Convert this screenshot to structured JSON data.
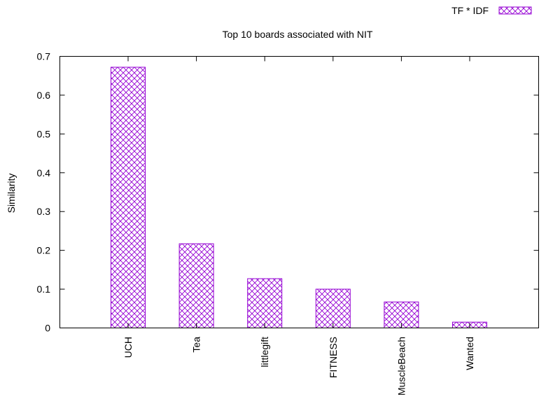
{
  "chart_data": {
    "type": "bar",
    "title": "Top 10 boards associated with NIT",
    "xlabel": "",
    "ylabel": "Similarity",
    "categories": [
      "UCH",
      "Tea",
      "littlegift",
      "FITNESS",
      "MuscleBeach",
      "Wanted"
    ],
    "series": [
      {
        "name": "TF * IDF",
        "values": [
          0.672,
          0.217,
          0.127,
          0.1,
          0.067,
          0.015
        ]
      }
    ],
    "ylim": [
      0,
      0.7
    ],
    "yticks": [
      "0",
      "0.1",
      "0.2",
      "0.3",
      "0.4",
      "0.5",
      "0.6",
      "0.7"
    ],
    "grid": false,
    "legend": "top-right",
    "colors": {
      "bar_stroke": "#9400d3",
      "axis": "#000000"
    }
  }
}
